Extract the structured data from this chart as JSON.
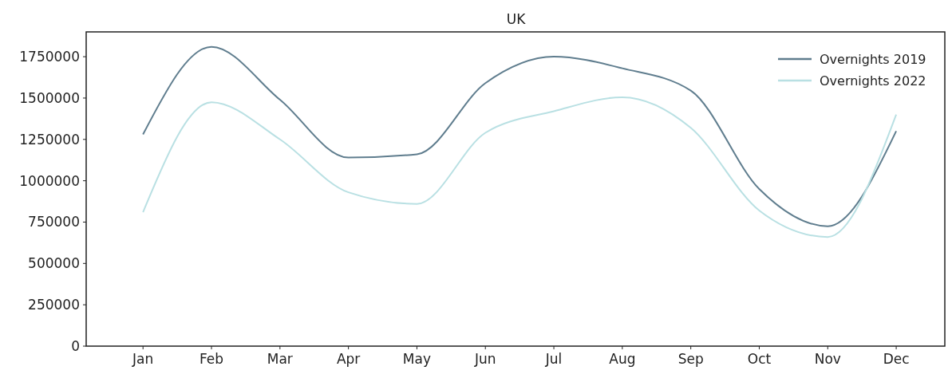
{
  "chart_data": {
    "type": "line",
    "title": "UK",
    "categories": [
      "Jan",
      "Feb",
      "Mar",
      "Apr",
      "May",
      "Jun",
      "Jul",
      "Aug",
      "Sep",
      "Oct",
      "Nov",
      "Dec"
    ],
    "series": [
      {
        "name": "Overnights 2019",
        "color": "#5f7d8e",
        "values": [
          1280000,
          1810000,
          1490000,
          1140000,
          1160000,
          1590000,
          1750000,
          1680000,
          1545000,
          950000,
          725000,
          1300000
        ]
      },
      {
        "name": "Overnights 2022",
        "color": "#b9e0e3",
        "values": [
          810000,
          1475000,
          1250000,
          930000,
          860000,
          1290000,
          1420000,
          1505000,
          1320000,
          820000,
          660000,
          1400000
        ]
      }
    ],
    "ylim": [
      0,
      1900000
    ],
    "yticks": [
      0,
      250000,
      500000,
      750000,
      1000000,
      1250000,
      1500000,
      1750000
    ],
    "grid": false,
    "legend": "top right"
  }
}
